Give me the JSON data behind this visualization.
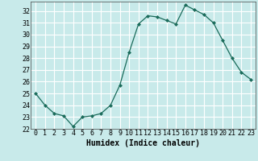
{
  "x": [
    0,
    1,
    2,
    3,
    4,
    5,
    6,
    7,
    8,
    9,
    10,
    11,
    12,
    13,
    14,
    15,
    16,
    17,
    18,
    19,
    20,
    21,
    22,
    23
  ],
  "y": [
    25,
    24,
    23.3,
    23.1,
    22.2,
    23.0,
    23.1,
    23.3,
    24.0,
    25.7,
    28.5,
    30.9,
    31.6,
    31.5,
    31.2,
    30.9,
    32.5,
    32.1,
    31.7,
    31.0,
    29.5,
    28.0,
    26.8,
    26.2
  ],
  "line_color": "#1a6b5a",
  "marker": "D",
  "marker_size": 2.0,
  "bg_color": "#c8eaea",
  "grid_color": "#ffffff",
  "xlabel": "Humidex (Indice chaleur)",
  "xlim": [
    -0.5,
    23.5
  ],
  "ylim": [
    22,
    32.8
  ],
  "yticks": [
    22,
    23,
    24,
    25,
    26,
    27,
    28,
    29,
    30,
    31,
    32
  ],
  "xlabel_fontsize": 7,
  "tick_fontsize": 6
}
